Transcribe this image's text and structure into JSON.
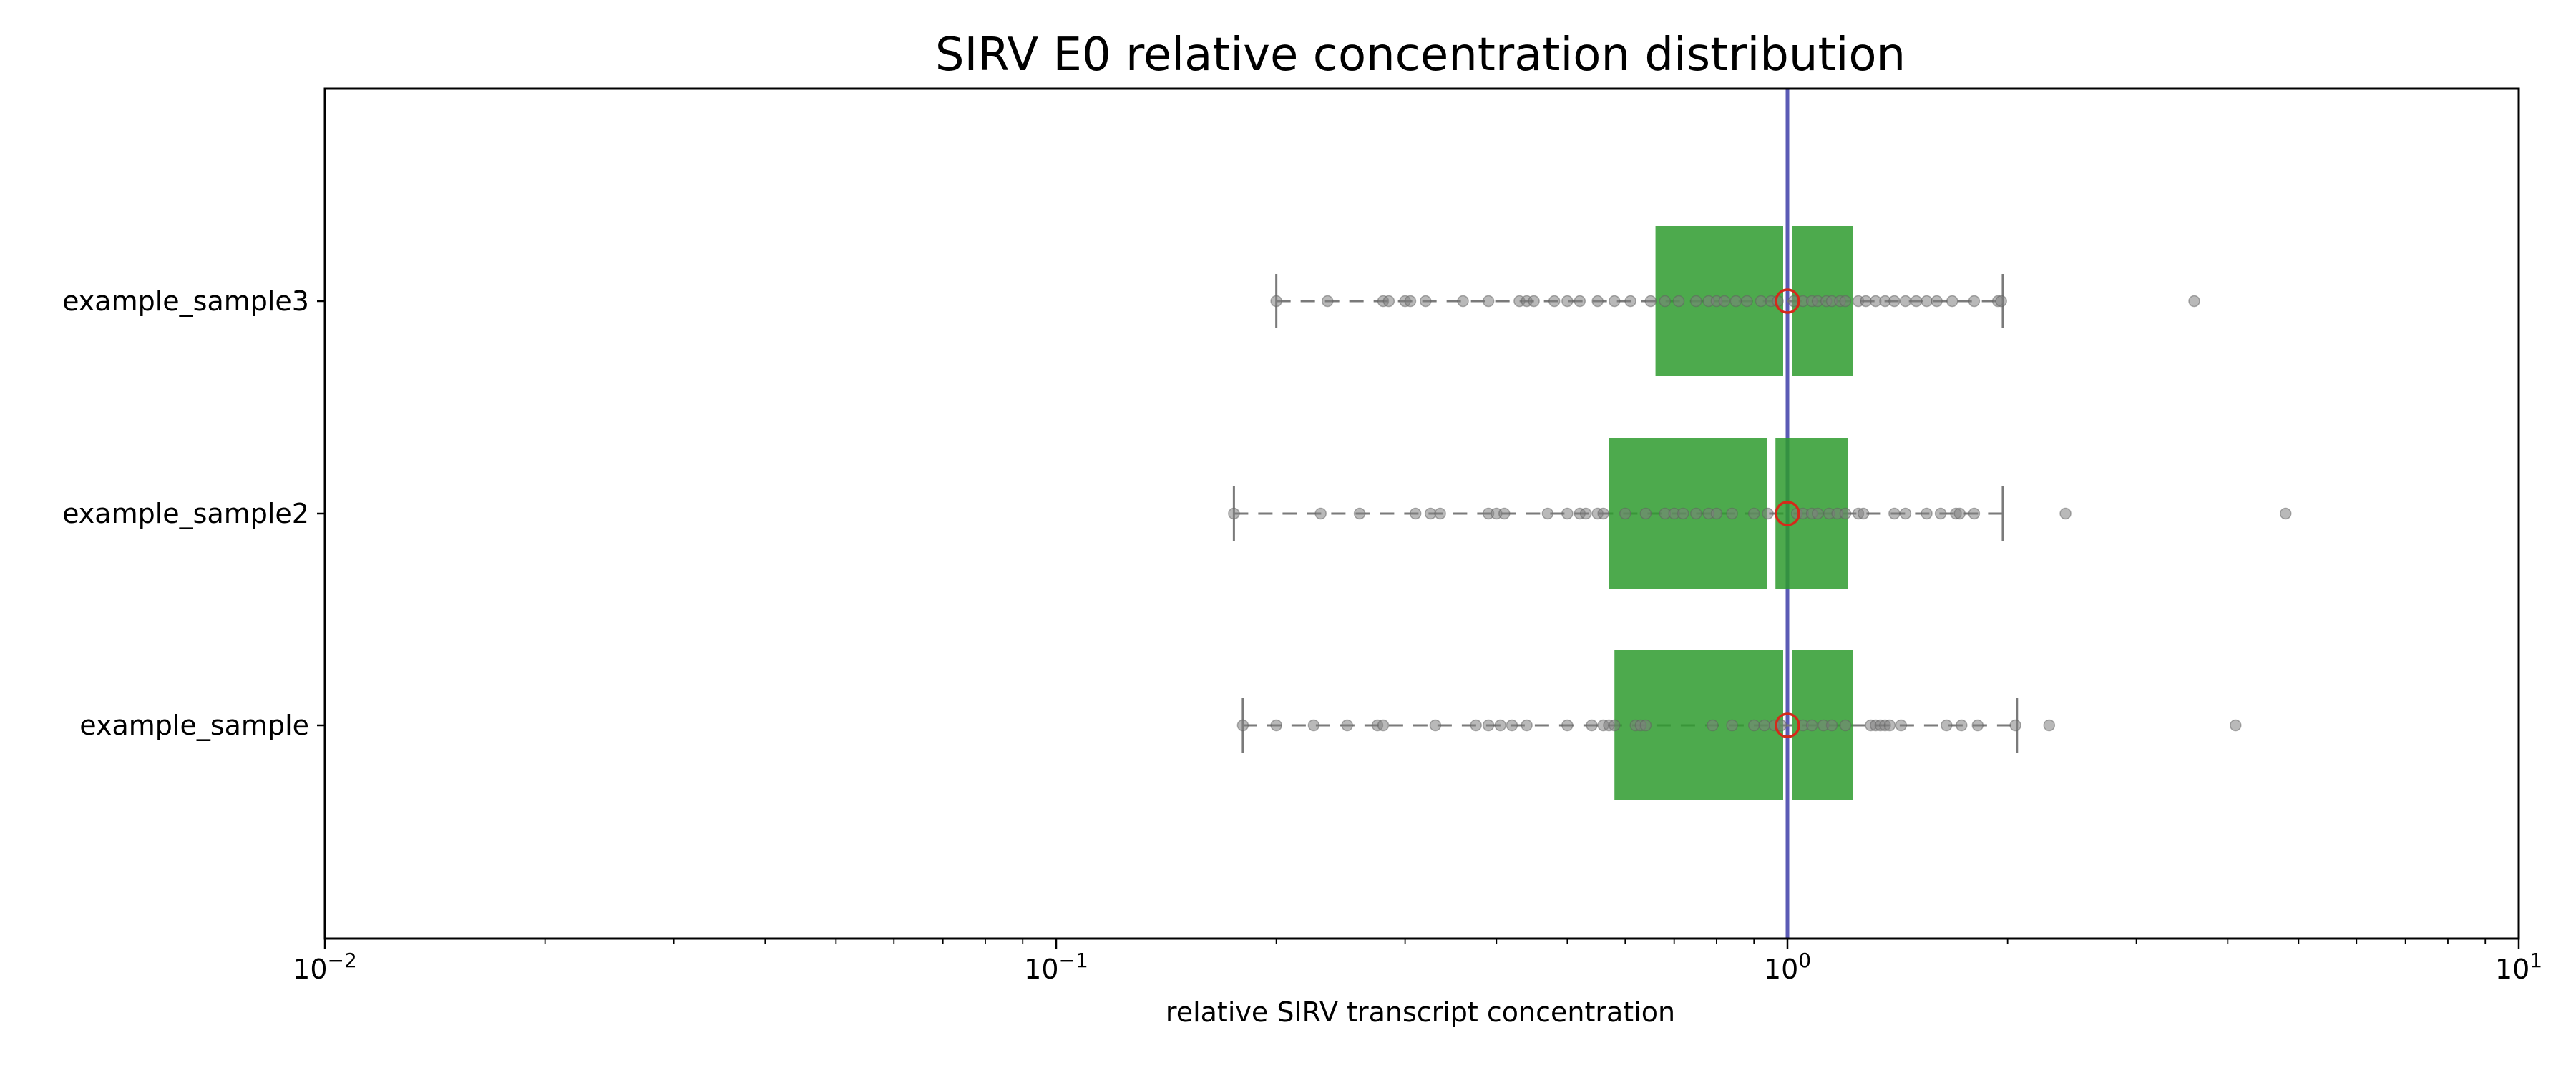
{
  "chart_data": {
    "type": "box",
    "title": "SIRV E0 relative concentration distribution",
    "xlabel": "relative SIRV transcript concentration",
    "ylabel": "",
    "xscale": "log",
    "xlim": [
      0.01,
      10
    ],
    "grid": false,
    "x_ticks": [
      {
        "value": 0.01,
        "base": "10",
        "exp": "−2"
      },
      {
        "value": 0.1,
        "base": "10",
        "exp": "−1"
      },
      {
        "value": 1,
        "base": "10",
        "exp": "0"
      },
      {
        "value": 10,
        "base": "10",
        "exp": "1"
      }
    ],
    "reference_line": {
      "x": 1,
      "color": "#5b5bb5"
    },
    "colors": {
      "box": "#2e9b2e",
      "points": "#808080",
      "median_marker": "#d42a1a",
      "whisker": "#7a7a7a"
    },
    "categories": [
      "example_sample3",
      "example_sample2",
      "example_sample"
    ],
    "series": [
      {
        "name": "example_sample3",
        "whisker_low": 0.2,
        "q1": 0.66,
        "median": 1.0,
        "q3": 1.23,
        "whisker_high": 1.97,
        "mean": 1.0,
        "points": [
          0.2,
          0.235,
          0.28,
          0.285,
          0.3,
          0.305,
          0.32,
          0.36,
          0.39,
          0.43,
          0.44,
          0.45,
          0.48,
          0.5,
          0.52,
          0.55,
          0.58,
          0.61,
          0.65,
          0.68,
          0.71,
          0.75,
          0.78,
          0.8,
          0.82,
          0.85,
          0.88,
          0.92,
          0.95,
          0.97,
          1.02,
          1.05,
          1.08,
          1.1,
          1.13,
          1.15,
          1.18,
          1.2,
          1.25,
          1.28,
          1.32,
          1.36,
          1.4,
          1.45,
          1.5,
          1.55,
          1.6,
          1.68,
          1.8,
          1.94,
          1.96,
          3.6
        ]
      },
      {
        "name": "example_sample2",
        "whisker_low": 0.175,
        "q1": 0.57,
        "median": 0.95,
        "q3": 1.21,
        "whisker_high": 1.97,
        "mean": 1.0,
        "points": [
          0.175,
          0.23,
          0.26,
          0.31,
          0.325,
          0.335,
          0.39,
          0.4,
          0.41,
          0.47,
          0.5,
          0.52,
          0.53,
          0.55,
          0.56,
          0.6,
          0.64,
          0.68,
          0.7,
          0.72,
          0.75,
          0.78,
          0.8,
          0.84,
          0.9,
          0.94,
          1.03,
          1.05,
          1.08,
          1.1,
          1.14,
          1.17,
          1.2,
          1.25,
          1.27,
          1.4,
          1.45,
          1.55,
          1.62,
          1.7,
          1.72,
          1.8,
          2.4,
          4.8
        ]
      },
      {
        "name": "example_sample",
        "whisker_low": 0.18,
        "q1": 0.58,
        "median": 1.0,
        "q3": 1.23,
        "whisker_high": 2.06,
        "mean": 1.0,
        "points": [
          0.18,
          0.2,
          0.225,
          0.25,
          0.275,
          0.28,
          0.33,
          0.375,
          0.39,
          0.405,
          0.42,
          0.44,
          0.5,
          0.54,
          0.56,
          0.57,
          0.58,
          0.62,
          0.63,
          0.64,
          0.79,
          0.84,
          0.9,
          0.93,
          0.96,
          0.98,
          1.05,
          1.08,
          1.12,
          1.15,
          1.2,
          1.3,
          1.32,
          1.34,
          1.36,
          1.38,
          1.43,
          1.65,
          1.73,
          1.82,
          2.05,
          2.28,
          4.1
        ]
      }
    ]
  }
}
